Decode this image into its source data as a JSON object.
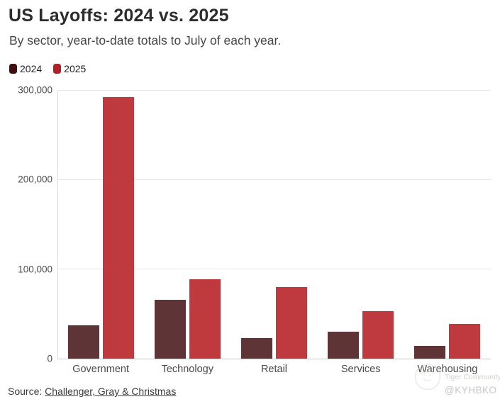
{
  "header": {
    "title": "US Layoffs: 2024 vs. 2025",
    "subtitle": "By sector, year-to-date totals to July of each year."
  },
  "chart_data": {
    "type": "bar",
    "title": "US Layoffs: 2024 vs. 2025",
    "subtitle": "By sector, year-to-date totals to July of each year.",
    "categories": [
      "Government",
      "Technology",
      "Retail",
      "Services",
      "Warehousing"
    ],
    "series": [
      {
        "name": "2024",
        "color": "#5f3436",
        "legend_color": "#420f10",
        "values": [
          37000,
          66000,
          23000,
          30000,
          14000
        ]
      },
      {
        "name": "2025",
        "color": "#be3a3e",
        "legend_color": "#b02025",
        "values": [
          292000,
          89000,
          80000,
          53000,
          39000
        ]
      }
    ],
    "xlabel": "",
    "ylabel": "",
    "ylim": [
      0,
      300000
    ],
    "yticks": [
      {
        "value": 0,
        "label": "0"
      },
      {
        "value": 100000,
        "label": "100,000"
      },
      {
        "value": 200000,
        "label": "200,000"
      },
      {
        "value": 300000,
        "label": "300,000"
      }
    ],
    "grid": true,
    "legend_position": "top-left"
  },
  "footer": {
    "source_prefix": "Source:",
    "source_link": "Challenger, Gray & Christmas"
  },
  "watermark": {
    "community": "Tiger Community",
    "handle": "@KYHBKO"
  }
}
